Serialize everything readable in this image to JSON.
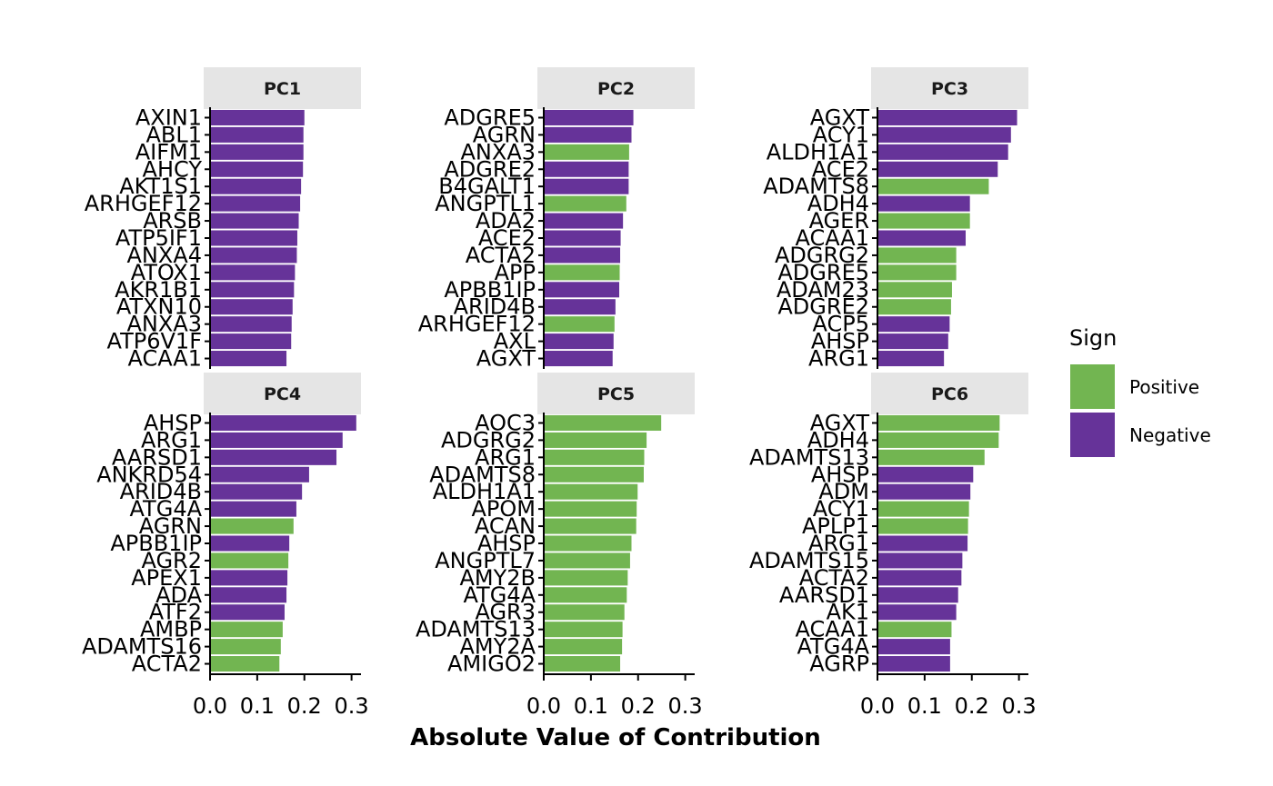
{
  "chart_data": {
    "type": "bar",
    "orientation": "horizontal",
    "xlabel": "Absolute Value of Contribution",
    "xlim": [
      0,
      0.32
    ],
    "x_ticks": [
      0.0,
      0.1,
      0.2,
      0.3
    ],
    "x_tick_labels": [
      "0.0",
      "0.1",
      "0.2",
      "0.3"
    ],
    "legend": {
      "title": "Sign",
      "position": "right",
      "entries": [
        {
          "key": "pos",
          "label": "Positive",
          "color": "#72B551"
        },
        {
          "key": "neg",
          "label": "Negative",
          "color": "#663399"
        }
      ]
    },
    "panels": [
      {
        "title": "PC1",
        "genes": [
          "AXIN1",
          "ABL1",
          "AIFM1",
          "AHCY",
          "AKT1S1",
          "ARHGEF12",
          "ARSB",
          "ATP5IF1",
          "ANXA4",
          "ATOX1",
          "AKR1B1",
          "ATXN10",
          "ANXA3",
          "ATP6V1F",
          "ACAA1"
        ],
        "values": [
          0.2,
          0.198,
          0.198,
          0.197,
          0.193,
          0.191,
          0.188,
          0.185,
          0.184,
          0.18,
          0.178,
          0.175,
          0.173,
          0.172,
          0.162
        ],
        "signs": [
          "neg",
          "neg",
          "neg",
          "neg",
          "neg",
          "neg",
          "neg",
          "neg",
          "neg",
          "neg",
          "neg",
          "neg",
          "neg",
          "neg",
          "neg"
        ]
      },
      {
        "title": "PC2",
        "genes": [
          "ADGRE5",
          "AGRN",
          "ANXA3",
          "ADGRE2",
          "B4GALT1",
          "ANGPTL1",
          "ADA2",
          "ACE2",
          "ACTA2",
          "APP",
          "APBB1IP",
          "ARID4B",
          "ARHGEF12",
          "AXL",
          "AGXT"
        ],
        "values": [
          0.19,
          0.186,
          0.181,
          0.18,
          0.18,
          0.175,
          0.168,
          0.163,
          0.162,
          0.161,
          0.16,
          0.152,
          0.15,
          0.148,
          0.146
        ],
        "signs": [
          "neg",
          "neg",
          "pos",
          "neg",
          "neg",
          "pos",
          "neg",
          "neg",
          "neg",
          "pos",
          "neg",
          "neg",
          "pos",
          "neg",
          "neg"
        ]
      },
      {
        "title": "PC3",
        "genes": [
          "AGXT",
          "ACY1",
          "ALDH1A1",
          "ACE2",
          "ADAMTS8",
          "ADH4",
          "AGER",
          "ACAA1",
          "ADGRG2",
          "ADGRE5",
          "ADAM23",
          "ADGRE2",
          "ACP5",
          "AHSP",
          "ARG1"
        ],
        "values": [
          0.296,
          0.283,
          0.277,
          0.255,
          0.236,
          0.196,
          0.196,
          0.187,
          0.167,
          0.167,
          0.158,
          0.156,
          0.153,
          0.15,
          0.141
        ],
        "signs": [
          "neg",
          "neg",
          "neg",
          "neg",
          "pos",
          "neg",
          "pos",
          "neg",
          "pos",
          "pos",
          "pos",
          "pos",
          "neg",
          "neg",
          "neg"
        ]
      },
      {
        "title": "PC4",
        "genes": [
          "AHSP",
          "ARG1",
          "AARSD1",
          "ANKRD54",
          "ARID4B",
          "ATG4A",
          "AGRN",
          "APBB1IP",
          "AGR2",
          "APEX1",
          "ADA",
          "ATF2",
          "AMBP",
          "ADAMTS16",
          "ACTA2"
        ],
        "values": [
          0.31,
          0.281,
          0.268,
          0.21,
          0.195,
          0.183,
          0.177,
          0.168,
          0.166,
          0.164,
          0.162,
          0.158,
          0.154,
          0.15,
          0.147
        ],
        "signs": [
          "neg",
          "neg",
          "neg",
          "neg",
          "neg",
          "neg",
          "pos",
          "neg",
          "pos",
          "neg",
          "neg",
          "neg",
          "pos",
          "pos",
          "pos"
        ]
      },
      {
        "title": "PC5",
        "genes": [
          "AOC3",
          "ADGRG2",
          "ARG1",
          "ADAMTS8",
          "ALDH1A1",
          "APOM",
          "ACAN",
          "AHSP",
          "ANGPTL7",
          "AMY2B",
          "ATG4A",
          "AGR3",
          "ADAMTS13",
          "AMY2A",
          "AMIGO2"
        ],
        "values": [
          0.249,
          0.218,
          0.213,
          0.212,
          0.199,
          0.197,
          0.196,
          0.186,
          0.183,
          0.178,
          0.176,
          0.171,
          0.167,
          0.166,
          0.162
        ],
        "signs": [
          "pos",
          "pos",
          "pos",
          "pos",
          "pos",
          "pos",
          "pos",
          "pos",
          "pos",
          "pos",
          "pos",
          "pos",
          "pos",
          "pos",
          "pos"
        ]
      },
      {
        "title": "PC6",
        "genes": [
          "AGXT",
          "ADH4",
          "ADAMTS13",
          "AHSP",
          "ADM",
          "ACY1",
          "APLP1",
          "ARG1",
          "ADAMTS15",
          "ACTA2",
          "AARSD1",
          "AK1",
          "ACAA1",
          "ATG4A",
          "AGRP"
        ],
        "values": [
          0.259,
          0.257,
          0.227,
          0.203,
          0.197,
          0.194,
          0.192,
          0.191,
          0.18,
          0.178,
          0.171,
          0.167,
          0.157,
          0.154,
          0.154
        ],
        "signs": [
          "pos",
          "pos",
          "pos",
          "neg",
          "neg",
          "pos",
          "pos",
          "neg",
          "neg",
          "neg",
          "neg",
          "neg",
          "pos",
          "neg",
          "neg"
        ]
      }
    ]
  }
}
